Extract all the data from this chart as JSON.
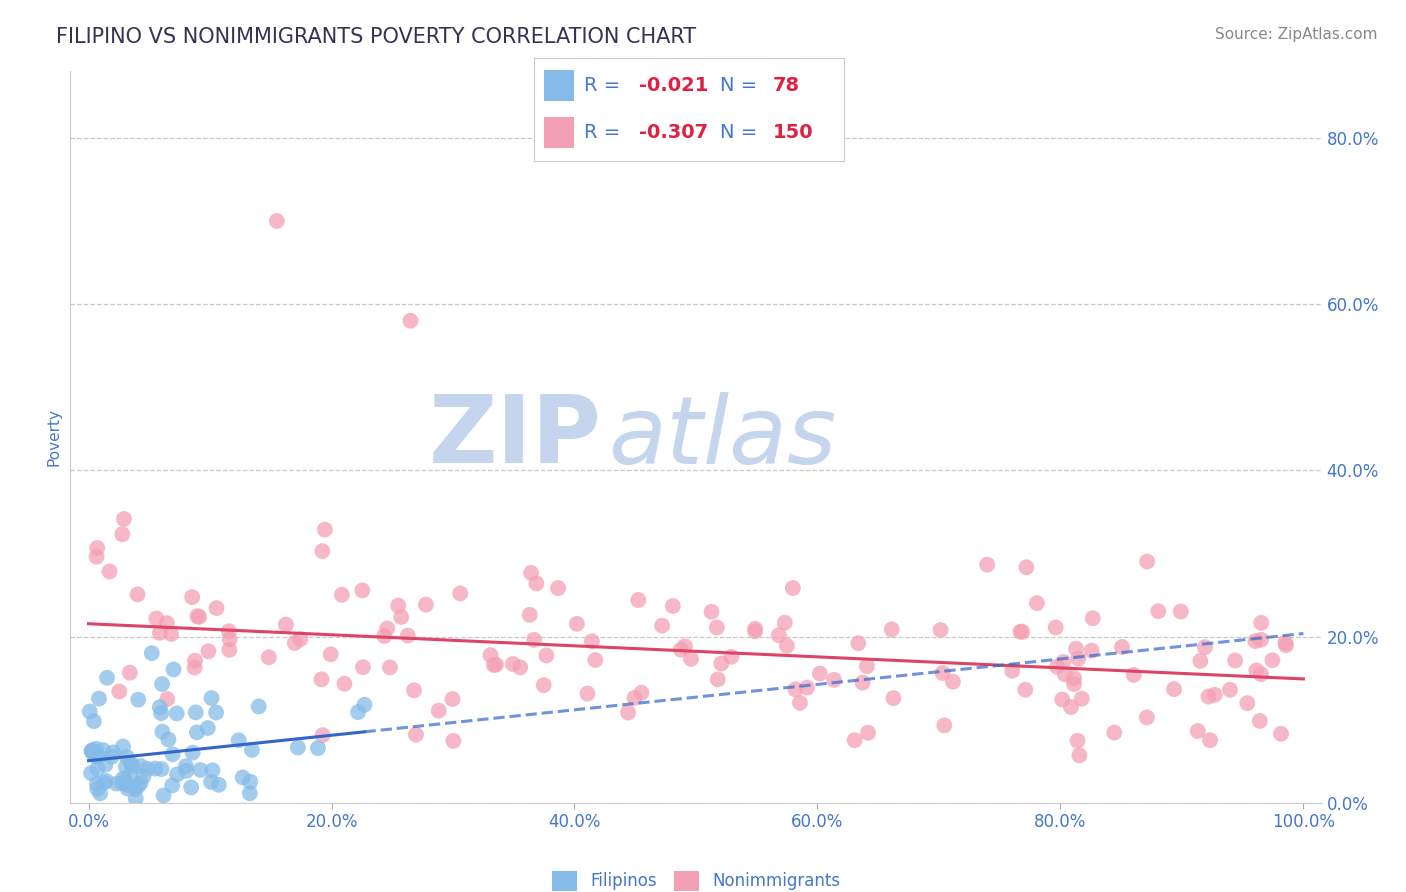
{
  "title": "FILIPINO VS NONIMMIGRANTS POVERTY CORRELATION CHART",
  "source": "Source: ZipAtlas.com",
  "xlabel_ticks": [
    "0.0%",
    "20.0%",
    "40.0%",
    "60.0%",
    "80.0%",
    "100.0%"
  ],
  "ylabel_label": "Poverty",
  "right_ytick_labels": [
    "0.0%",
    "20.0%",
    "40.0%",
    "60.0%",
    "80.0%"
  ],
  "right_ytick_vals": [
    0.0,
    0.2,
    0.4,
    0.6,
    0.8
  ],
  "ylim": [
    0.0,
    0.88
  ],
  "xlim": [
    -0.015,
    1.015
  ],
  "filipino_R": -0.021,
  "filipino_N": 78,
  "nonimmigrant_R": -0.307,
  "nonimmigrant_N": 150,
  "filipino_color": "#85BBE8",
  "nonimmigrant_color": "#F4A0B4",
  "trendline_filipino_color": "#3366CC",
  "trendline_nonimmigrant_color": "#DD4466",
  "title_color": "#333355",
  "axis_label_color": "#4477CC",
  "legend_value_color": "#DD2244",
  "watermark_zip_color": "#C5D5EE",
  "watermark_atlas_color": "#C5D5EE",
  "background_color": "#FFFFFF",
  "grid_color": "#BBBBBB",
  "title_fontsize": 15,
  "axis_tick_fontsize": 12,
  "legend_fontsize": 14,
  "source_fontsize": 11,
  "ylabel_fontsize": 11
}
